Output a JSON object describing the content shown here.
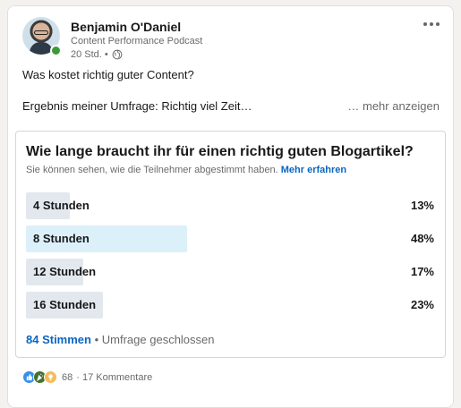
{
  "post": {
    "author": {
      "name": "Benjamin O'Daniel",
      "subtitle": "Content Performance Podcast",
      "time": "20 Std. •"
    },
    "text": "Was kostet richtig guter Content?",
    "text_line2": "Ergebnis meiner Umfrage: Richtig viel Zeit…",
    "see_more": "… mehr anzeigen"
  },
  "poll": {
    "question": "Wie lange braucht ihr für einen richtig guten Blogartikel?",
    "note": "Sie können sehen, wie die Teilnehmer abgestimmt haben.",
    "note_link": "Mehr erfahren",
    "options": [
      {
        "label": "4 Stunden",
        "percent_text": "13%",
        "percent": 13,
        "selected": false
      },
      {
        "label": "8 Stunden",
        "percent_text": "48%",
        "percent": 48,
        "selected": true
      },
      {
        "label": "12 Stunden",
        "percent_text": "17%",
        "percent": 17,
        "selected": false
      },
      {
        "label": "16 Stunden",
        "percent_text": "23%",
        "percent": 23,
        "selected": false
      }
    ],
    "votes": "84 Stimmen",
    "status": "• Umfrage geschlossen"
  },
  "social": {
    "reaction_count": "68",
    "comments": "· 17 Kommentare",
    "reaction_icons": [
      "like-icon",
      "celebrate-icon",
      "insightful-icon"
    ]
  },
  "colors": {
    "accent": "#0a66c2",
    "bar": "#e2e8ee",
    "bar_selected": "#dcf0fa",
    "presence": "#3a9b39"
  }
}
